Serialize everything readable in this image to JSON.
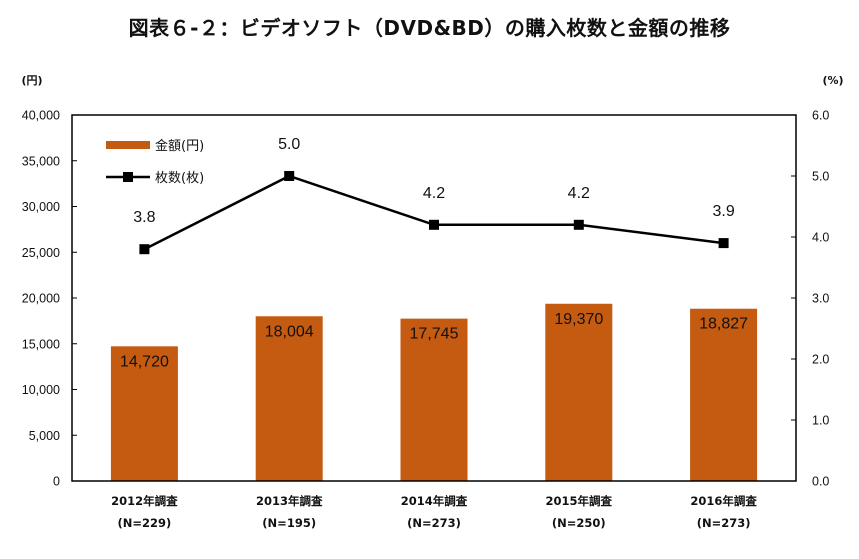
{
  "chart_data": {
    "type": "bar",
    "title": "図表６-２：ビデオソフト（DVD&BD）の購入枚数と金額の推移",
    "categories": [
      "2012年調査",
      "2013年調査",
      "2014年調査",
      "2015年調査",
      "2016年調査"
    ],
    "category_sublabels": [
      "(N=229)",
      "(N=195)",
      "(N=273)",
      "(N=250)",
      "(N=273)"
    ],
    "series": [
      {
        "name": "金額(円)",
        "type": "bar",
        "axis": "left",
        "color": "#C55A11",
        "values": [
          14720,
          18004,
          17745,
          19370,
          18827
        ],
        "labels": [
          "14,720",
          "18,004",
          "17,745",
          "19,370",
          "18,827"
        ]
      },
      {
        "name": "枚数(枚)",
        "type": "line",
        "axis": "right",
        "color": "#000000",
        "marker": "square",
        "values": [
          3.8,
          5.0,
          4.2,
          4.2,
          3.9
        ],
        "labels": [
          "3.8",
          "5.0",
          "4.2",
          "4.2",
          "3.9"
        ]
      }
    ],
    "y_left": {
      "unit_label": "(円)",
      "range": [
        0,
        40000
      ],
      "ticks": [
        0,
        5000,
        10000,
        15000,
        20000,
        25000,
        30000,
        35000,
        40000
      ],
      "tick_labels": [
        "0",
        "5,000",
        "10,000",
        "15,000",
        "20,000",
        "25,000",
        "30,000",
        "35,000",
        "40,000"
      ]
    },
    "y_right": {
      "unit_label": "(%)",
      "range": [
        0,
        6
      ],
      "ticks": [
        0,
        1,
        2,
        3,
        4,
        5,
        6
      ],
      "tick_labels": [
        "0.0",
        "1.0",
        "2.0",
        "3.0",
        "4.0",
        "5.0",
        "6.0"
      ]
    },
    "xlabel": "",
    "grid": false,
    "legend_position": "top-left"
  }
}
